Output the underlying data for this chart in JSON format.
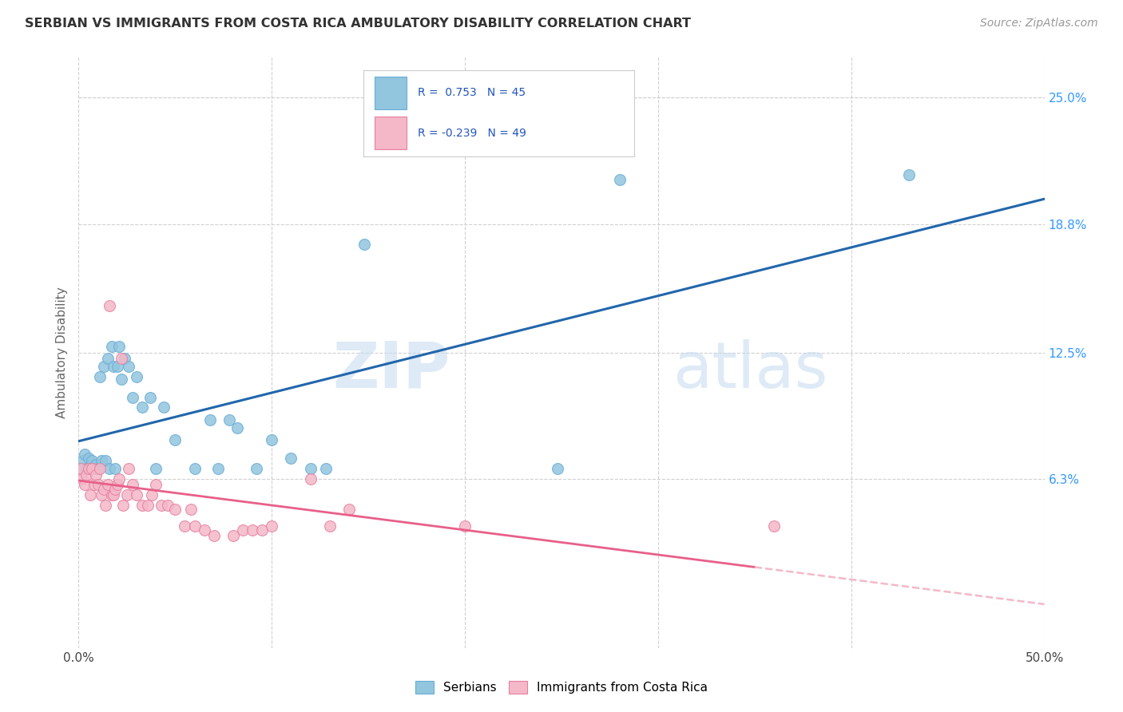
{
  "title": "SERBIAN VS IMMIGRANTS FROM COSTA RICA AMBULATORY DISABILITY CORRELATION CHART",
  "source": "Source: ZipAtlas.com",
  "ylabel": "Ambulatory Disability",
  "watermark": "ZIPatlas",
  "xlim": [
    0.0,
    0.5
  ],
  "ylim": [
    -0.02,
    0.27
  ],
  "xticks": [
    0.0,
    0.1,
    0.2,
    0.3,
    0.4,
    0.5
  ],
  "xtick_labels": [
    "0.0%",
    "",
    "",
    "",
    "",
    "50.0%"
  ],
  "ytick_labels_right": [
    "25.0%",
    "18.8%",
    "12.5%",
    "6.3%"
  ],
  "ytick_vals_right": [
    0.25,
    0.188,
    0.125,
    0.063
  ],
  "serbian_R": 0.753,
  "serbian_N": 45,
  "costarica_R": -0.239,
  "costarica_N": 49,
  "serbian_color": "#92c5de",
  "costarica_color": "#f4b8c8",
  "serbian_edge_color": "#6aaed6",
  "costarica_edge_color": "#e87fa0",
  "serbian_line_color": "#2166ac",
  "costarica_line_color": "#e8608a",
  "costarica_line_dashed_color": "#f4b8c8",
  "background_color": "#ffffff",
  "grid_color": "#d0d0d0",
  "serbian_points": [
    [
      0.001,
      0.068
    ],
    [
      0.002,
      0.072
    ],
    [
      0.003,
      0.075
    ],
    [
      0.004,
      0.068
    ],
    [
      0.005,
      0.073
    ],
    [
      0.006,
      0.068
    ],
    [
      0.007,
      0.072
    ],
    [
      0.008,
      0.068
    ],
    [
      0.009,
      0.07
    ],
    [
      0.01,
      0.068
    ],
    [
      0.011,
      0.113
    ],
    [
      0.012,
      0.072
    ],
    [
      0.013,
      0.118
    ],
    [
      0.014,
      0.072
    ],
    [
      0.015,
      0.122
    ],
    [
      0.016,
      0.068
    ],
    [
      0.017,
      0.128
    ],
    [
      0.018,
      0.118
    ],
    [
      0.019,
      0.068
    ],
    [
      0.02,
      0.118
    ],
    [
      0.021,
      0.128
    ],
    [
      0.022,
      0.112
    ],
    [
      0.024,
      0.122
    ],
    [
      0.026,
      0.118
    ],
    [
      0.028,
      0.103
    ],
    [
      0.03,
      0.113
    ],
    [
      0.033,
      0.098
    ],
    [
      0.037,
      0.103
    ],
    [
      0.04,
      0.068
    ],
    [
      0.044,
      0.098
    ],
    [
      0.05,
      0.082
    ],
    [
      0.06,
      0.068
    ],
    [
      0.068,
      0.092
    ],
    [
      0.072,
      0.068
    ],
    [
      0.078,
      0.092
    ],
    [
      0.082,
      0.088
    ],
    [
      0.092,
      0.068
    ],
    [
      0.1,
      0.082
    ],
    [
      0.11,
      0.073
    ],
    [
      0.12,
      0.068
    ],
    [
      0.128,
      0.068
    ],
    [
      0.148,
      0.178
    ],
    [
      0.248,
      0.068
    ],
    [
      0.28,
      0.21
    ],
    [
      0.43,
      0.212
    ]
  ],
  "costarica_points": [
    [
      0.001,
      0.068
    ],
    [
      0.002,
      0.063
    ],
    [
      0.003,
      0.06
    ],
    [
      0.004,
      0.065
    ],
    [
      0.005,
      0.068
    ],
    [
      0.006,
      0.055
    ],
    [
      0.007,
      0.068
    ],
    [
      0.008,
      0.06
    ],
    [
      0.009,
      0.065
    ],
    [
      0.01,
      0.06
    ],
    [
      0.011,
      0.068
    ],
    [
      0.012,
      0.055
    ],
    [
      0.013,
      0.058
    ],
    [
      0.014,
      0.05
    ],
    [
      0.015,
      0.06
    ],
    [
      0.016,
      0.148
    ],
    [
      0.017,
      0.055
    ],
    [
      0.018,
      0.055
    ],
    [
      0.019,
      0.058
    ],
    [
      0.02,
      0.06
    ],
    [
      0.021,
      0.063
    ],
    [
      0.022,
      0.122
    ],
    [
      0.023,
      0.05
    ],
    [
      0.025,
      0.055
    ],
    [
      0.026,
      0.068
    ],
    [
      0.028,
      0.06
    ],
    [
      0.03,
      0.055
    ],
    [
      0.033,
      0.05
    ],
    [
      0.036,
      0.05
    ],
    [
      0.038,
      0.055
    ],
    [
      0.04,
      0.06
    ],
    [
      0.043,
      0.05
    ],
    [
      0.046,
      0.05
    ],
    [
      0.05,
      0.048
    ],
    [
      0.055,
      0.04
    ],
    [
      0.058,
      0.048
    ],
    [
      0.06,
      0.04
    ],
    [
      0.065,
      0.038
    ],
    [
      0.07,
      0.035
    ],
    [
      0.08,
      0.035
    ],
    [
      0.085,
      0.038
    ],
    [
      0.09,
      0.038
    ],
    [
      0.095,
      0.038
    ],
    [
      0.1,
      0.04
    ],
    [
      0.12,
      0.063
    ],
    [
      0.13,
      0.04
    ],
    [
      0.14,
      0.048
    ],
    [
      0.2,
      0.04
    ],
    [
      0.36,
      0.04
    ]
  ]
}
